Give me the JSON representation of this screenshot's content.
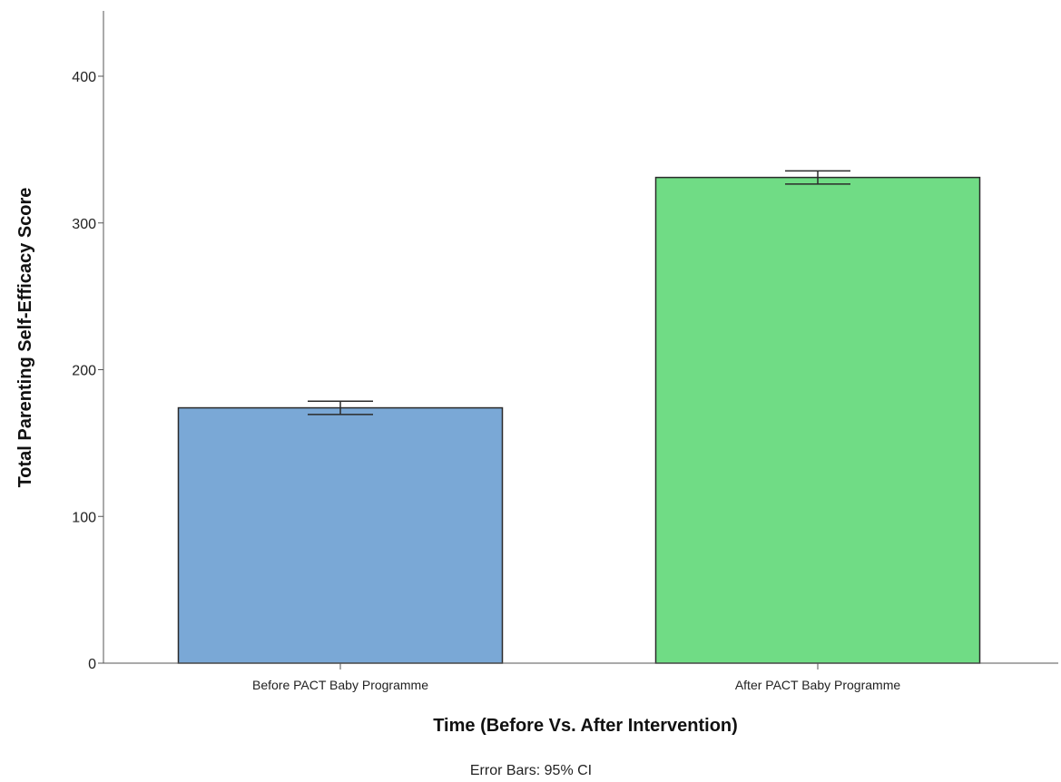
{
  "chart_data": {
    "type": "bar",
    "categories": [
      "Before PACT Baby Programme",
      "After PACT Baby Programme"
    ],
    "values": [
      174,
      331
    ],
    "error_bars": [
      {
        "low": 169.5,
        "high": 178.5
      },
      {
        "low": 326.5,
        "high": 335.5
      }
    ],
    "bar_colors": [
      "#7aa8d6",
      "#70dc85"
    ],
    "xlabel": "Time (Before Vs. After Intervention)",
    "ylabel": "Total Parenting Self-Efficacy Score",
    "ylim": [
      0,
      450
    ],
    "yticks": [
      0,
      100,
      200,
      300,
      400
    ],
    "footnote": "Error Bars: 95% CI",
    "grid": false
  }
}
